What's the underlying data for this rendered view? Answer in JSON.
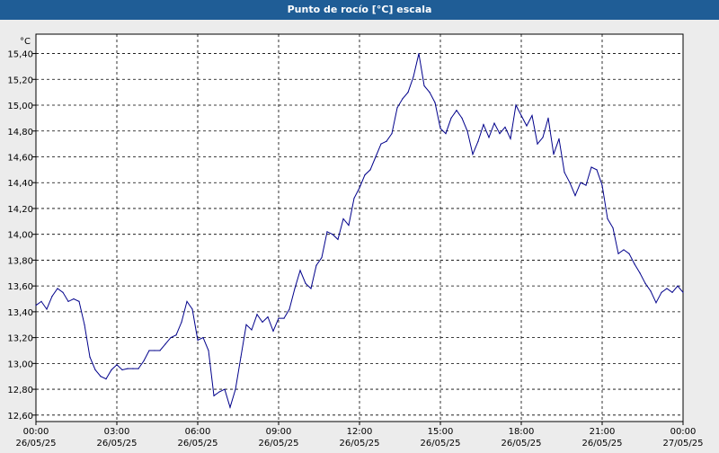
{
  "window": {
    "title": "Punto de rocío [°C] escala"
  },
  "colors": {
    "title_bar": "#1f5d96",
    "plot_background": "#ffffff",
    "line": "#00008b",
    "grid": "#000000",
    "panel": "#ececec"
  },
  "chart_data": {
    "type": "line",
    "title": "Punto de rocío [°C] escala",
    "ylabel": "°C",
    "xlabel": "",
    "ylim": [
      12.55,
      15.55
    ],
    "xlim": [
      0,
      24
    ],
    "grid": true,
    "yticks": [
      "12,60",
      "12,80",
      "13,00",
      "13,20",
      "13,40",
      "13,60",
      "13,80",
      "14,00",
      "14,20",
      "14,40",
      "14,60",
      "14,80",
      "15,00",
      "15,20",
      "15,40"
    ],
    "xticks": [
      {
        "time": "00:00",
        "date": "26/05/25"
      },
      {
        "time": "03:00",
        "date": "26/05/25"
      },
      {
        "time": "06:00",
        "date": "26/05/25"
      },
      {
        "time": "09:00",
        "date": "26/05/25"
      },
      {
        "time": "12:00",
        "date": "26/05/25"
      },
      {
        "time": "15:00",
        "date": "26/05/25"
      },
      {
        "time": "18:00",
        "date": "26/05/25"
      },
      {
        "time": "21:00",
        "date": "26/05/25"
      },
      {
        "time": "00:00",
        "date": "27/05/25"
      }
    ],
    "series": [
      {
        "x": [
          0,
          0.2,
          0.4,
          0.6,
          0.8,
          1.0,
          1.2,
          1.4,
          1.6,
          1.8,
          2.0,
          2.2,
          2.4,
          2.6,
          2.8,
          3.0,
          3.2,
          3.4,
          3.6,
          3.8,
          4.0,
          4.2,
          4.4,
          4.6,
          4.8,
          5.0,
          5.2,
          5.4,
          5.6,
          5.8,
          6.0,
          6.2,
          6.4,
          6.6,
          6.8,
          7.0,
          7.2,
          7.4,
          7.6,
          7.8,
          8.0,
          8.2,
          8.4,
          8.6,
          8.8,
          9.0,
          9.2,
          9.4,
          9.6,
          9.8,
          10.0,
          10.2,
          10.4,
          10.6,
          10.8,
          11.0,
          11.2,
          11.4,
          11.6,
          11.8,
          12.0,
          12.2,
          12.4,
          12.6,
          12.8,
          13.0,
          13.2,
          13.4,
          13.6,
          13.8,
          14.0,
          14.2,
          14.4,
          14.6,
          14.8,
          15.0,
          15.2,
          15.4,
          15.6,
          15.8,
          16.0,
          16.2,
          16.4,
          16.6,
          16.8,
          17.0,
          17.2,
          17.4,
          17.6,
          17.8,
          18.0,
          18.2,
          18.4,
          18.6,
          18.8,
          19.0,
          19.2,
          19.4,
          19.6,
          19.8,
          20.0,
          20.2,
          20.4,
          20.6,
          20.8,
          21.0,
          21.2,
          21.4,
          21.6,
          21.8,
          22.0,
          22.2,
          22.4,
          22.6,
          22.8,
          23.0,
          23.2,
          23.4,
          23.6,
          23.8,
          24.0
        ],
        "values": [
          13.45,
          13.48,
          13.42,
          13.52,
          13.58,
          13.55,
          13.48,
          13.5,
          13.48,
          13.3,
          13.05,
          12.95,
          12.9,
          12.88,
          12.95,
          12.99,
          12.95,
          12.96,
          12.96,
          12.96,
          13.02,
          13.1,
          13.1,
          13.1,
          13.15,
          13.2,
          13.22,
          13.32,
          13.48,
          13.42,
          13.18,
          13.2,
          13.1,
          12.75,
          12.78,
          12.8,
          12.66,
          12.8,
          13.05,
          13.3,
          13.26,
          13.38,
          13.32,
          13.36,
          13.25,
          13.35,
          13.35,
          13.42,
          13.58,
          13.72,
          13.62,
          13.58,
          13.76,
          13.82,
          14.02,
          14.0,
          13.96,
          14.12,
          14.07,
          14.28,
          14.36,
          14.46,
          14.5,
          14.6,
          14.7,
          14.72,
          14.78,
          14.98,
          15.05,
          15.1,
          15.22,
          15.4,
          15.15,
          15.1,
          15.02,
          14.82,
          14.78,
          14.9,
          14.96,
          14.9,
          14.8,
          14.62,
          14.72,
          14.85,
          14.75,
          14.86,
          14.78,
          14.83,
          14.74,
          15.0,
          14.92,
          14.84,
          14.92,
          14.7,
          14.75,
          14.9,
          14.62,
          14.74,
          14.48,
          14.4,
          14.3,
          14.4,
          14.38,
          14.52,
          14.5,
          14.38,
          14.12,
          14.05,
          13.85,
          13.88,
          13.85,
          13.77,
          13.7,
          13.62,
          13.56,
          13.47,
          13.55,
          13.58,
          13.55,
          13.6,
          13.55
        ]
      }
    ]
  }
}
